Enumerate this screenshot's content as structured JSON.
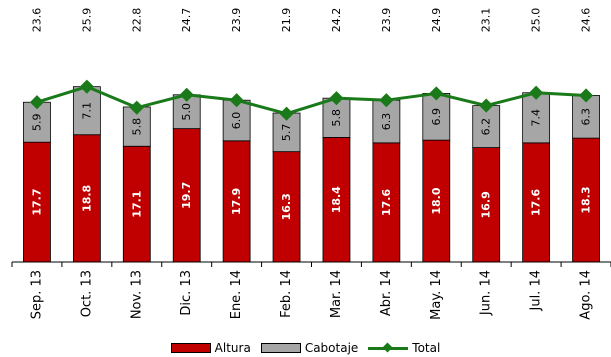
{
  "chart_data": {
    "type": "bar",
    "stacked": true,
    "categories": [
      "Sep. 13",
      "Oct. 13",
      "Nov. 13",
      "Dic. 13",
      "Ene. 14",
      "Feb. 14",
      "Mar. 14",
      "Abr. 14",
      "May. 14",
      "Jun. 14",
      "Jul. 14",
      "Ago. 14"
    ],
    "series": [
      {
        "name": "Altura",
        "kind": "bar",
        "color": "#c00000",
        "label_color": "#ffffff",
        "values": [
          17.7,
          18.8,
          17.1,
          19.7,
          17.9,
          16.3,
          18.4,
          17.6,
          18.0,
          16.9,
          17.6,
          18.3
        ]
      },
      {
        "name": "Cabotaje",
        "kind": "bar",
        "color": "#a6a6a6",
        "label_color": "#000000",
        "values": [
          5.9,
          7.1,
          5.8,
          5.0,
          6.0,
          5.7,
          5.8,
          6.3,
          6.9,
          6.2,
          7.4,
          6.3
        ]
      },
      {
        "name": "Total",
        "kind": "line",
        "color": "#1a7a1a",
        "label_color": "#000000",
        "values": [
          23.6,
          25.9,
          22.8,
          24.7,
          23.9,
          21.9,
          24.2,
          23.9,
          24.9,
          23.1,
          25.0,
          24.6
        ]
      }
    ],
    "ylim": [
      0,
      28
    ],
    "grid": false,
    "legend_position": "bottom"
  }
}
